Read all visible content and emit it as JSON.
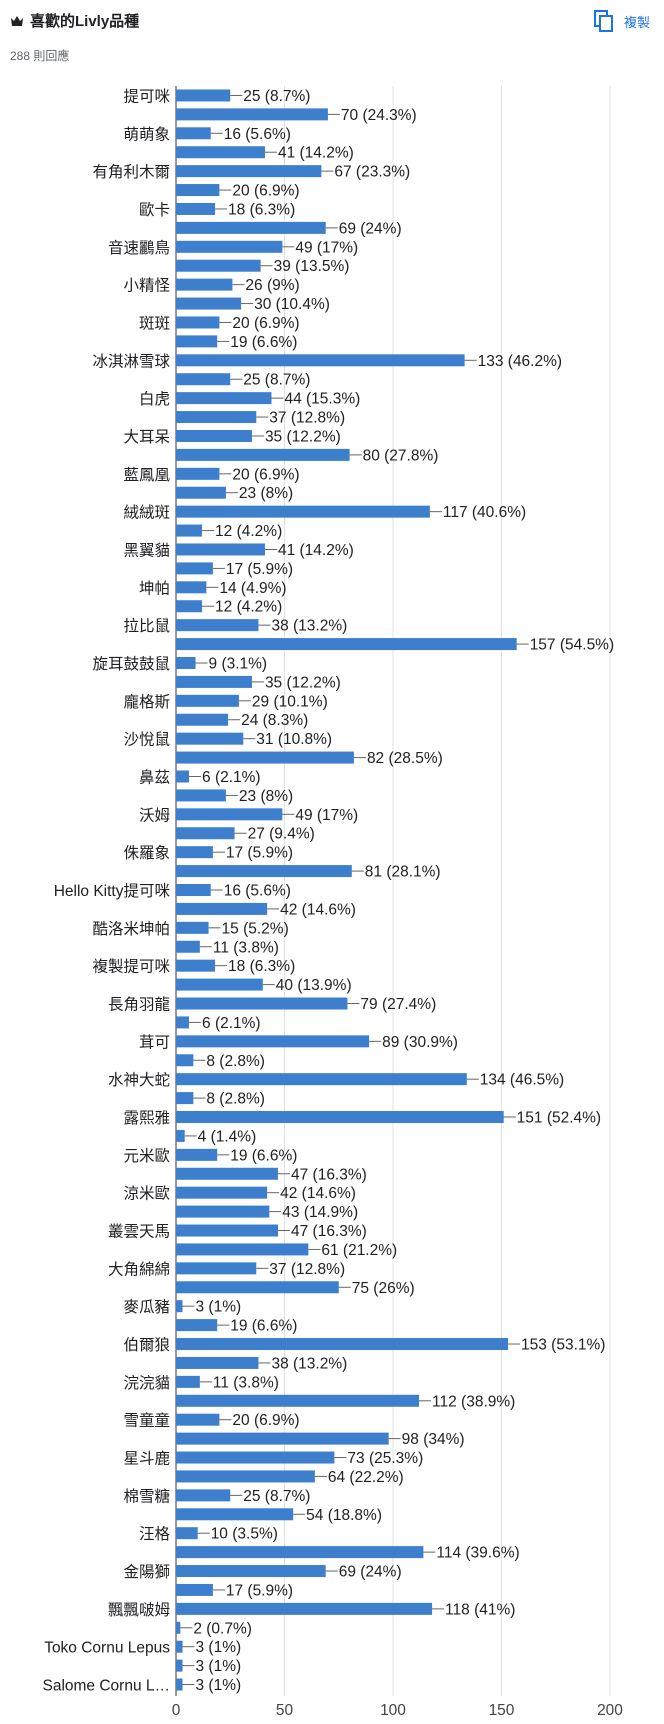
{
  "header": {
    "title": "喜歡的Livly品種",
    "responses": "288 則回應",
    "copy_label": "複製"
  },
  "colors": {
    "bar": "#3d7fcc",
    "grid": "#e0e0e0",
    "accent": "#1a73e8"
  },
  "icons": {
    "title_icon": "crown-icon",
    "copy_icon": "copy-icon"
  },
  "chart_data": {
    "type": "bar",
    "orientation": "horizontal",
    "xlim": [
      0,
      200
    ],
    "xticks": [
      "0",
      "50",
      "100",
      "150",
      "200"
    ],
    "grid": true,
    "rows": [
      {
        "label": "提可咪",
        "value": 25,
        "text": "25 (8.7%)"
      },
      {
        "label": "",
        "value": 70,
        "text": "70 (24.3%)"
      },
      {
        "label": "萌萌象",
        "value": 16,
        "text": "16 (5.6%)"
      },
      {
        "label": "",
        "value": 41,
        "text": "41 (14.2%)"
      },
      {
        "label": "有角利木爾",
        "value": 67,
        "text": "67 (23.3%)"
      },
      {
        "label": "",
        "value": 20,
        "text": "20 (6.9%)"
      },
      {
        "label": "歐卡",
        "value": 18,
        "text": "18 (6.3%)"
      },
      {
        "label": "",
        "value": 69,
        "text": "69 (24%)"
      },
      {
        "label": "音速鸝鳥",
        "value": 49,
        "text": "49 (17%)"
      },
      {
        "label": "",
        "value": 39,
        "text": "39 (13.5%)"
      },
      {
        "label": "小精怪",
        "value": 26,
        "text": "26 (9%)"
      },
      {
        "label": "",
        "value": 30,
        "text": "30 (10.4%)"
      },
      {
        "label": "斑斑",
        "value": 20,
        "text": "20 (6.9%)"
      },
      {
        "label": "",
        "value": 19,
        "text": "19 (6.6%)"
      },
      {
        "label": "冰淇淋雪球",
        "value": 133,
        "text": "133 (46.2%)"
      },
      {
        "label": "",
        "value": 25,
        "text": "25 (8.7%)"
      },
      {
        "label": "白虎",
        "value": 44,
        "text": "44 (15.3%)"
      },
      {
        "label": "",
        "value": 37,
        "text": "37 (12.8%)"
      },
      {
        "label": "大耳呆",
        "value": 35,
        "text": "35 (12.2%)"
      },
      {
        "label": "",
        "value": 80,
        "text": "80 (27.8%)"
      },
      {
        "label": "藍鳳凰",
        "value": 20,
        "text": "20 (6.9%)"
      },
      {
        "label": "",
        "value": 23,
        "text": "23 (8%)"
      },
      {
        "label": "絨絨斑",
        "value": 117,
        "text": "117 (40.6%)"
      },
      {
        "label": "",
        "value": 12,
        "text": "12 (4.2%)"
      },
      {
        "label": "黑翼貓",
        "value": 41,
        "text": "41 (14.2%)"
      },
      {
        "label": "",
        "value": 17,
        "text": "17 (5.9%)"
      },
      {
        "label": "坤帕",
        "value": 14,
        "text": "14 (4.9%)"
      },
      {
        "label": "",
        "value": 12,
        "text": "12 (4.2%)"
      },
      {
        "label": "拉比鼠",
        "value": 38,
        "text": "38 (13.2%)"
      },
      {
        "label": "",
        "value": 157,
        "text": "157 (54.5%)"
      },
      {
        "label": "旋耳鼓鼓鼠",
        "value": 9,
        "text": "9 (3.1%)"
      },
      {
        "label": "",
        "value": 35,
        "text": "35 (12.2%)"
      },
      {
        "label": "龐格斯",
        "value": 29,
        "text": "29 (10.1%)"
      },
      {
        "label": "",
        "value": 24,
        "text": "24 (8.3%)"
      },
      {
        "label": "沙悅鼠",
        "value": 31,
        "text": "31 (10.8%)"
      },
      {
        "label": "",
        "value": 82,
        "text": "82 (28.5%)"
      },
      {
        "label": "鼻茲",
        "value": 6,
        "text": "6 (2.1%)"
      },
      {
        "label": "",
        "value": 23,
        "text": "23 (8%)"
      },
      {
        "label": "沃姆",
        "value": 49,
        "text": "49 (17%)"
      },
      {
        "label": "",
        "value": 27,
        "text": "27 (9.4%)"
      },
      {
        "label": "侏羅象",
        "value": 17,
        "text": "17 (5.9%)"
      },
      {
        "label": "",
        "value": 81,
        "text": "81 (28.1%)"
      },
      {
        "label": "Hello Kitty提可咪",
        "value": 16,
        "text": "16 (5.6%)"
      },
      {
        "label": "",
        "value": 42,
        "text": "42 (14.6%)"
      },
      {
        "label": "酷洛米坤帕",
        "value": 15,
        "text": "15 (5.2%)"
      },
      {
        "label": "",
        "value": 11,
        "text": "11 (3.8%)"
      },
      {
        "label": "複製提可咪",
        "value": 18,
        "text": "18 (6.3%)"
      },
      {
        "label": "",
        "value": 40,
        "text": "40 (13.9%)"
      },
      {
        "label": "長角羽龍",
        "value": 79,
        "text": "79 (27.4%)"
      },
      {
        "label": "",
        "value": 6,
        "text": "6 (2.1%)"
      },
      {
        "label": "茸可",
        "value": 89,
        "text": "89 (30.9%)"
      },
      {
        "label": "",
        "value": 8,
        "text": "8 (2.8%)"
      },
      {
        "label": "水神大蛇",
        "value": 134,
        "text": "134 (46.5%)"
      },
      {
        "label": "",
        "value": 8,
        "text": "8 (2.8%)"
      },
      {
        "label": "露熙雅",
        "value": 151,
        "text": "151 (52.4%)"
      },
      {
        "label": "",
        "value": 4,
        "text": "4 (1.4%)"
      },
      {
        "label": "元米歐",
        "value": 19,
        "text": "19 (6.6%)"
      },
      {
        "label": "",
        "value": 47,
        "text": "47 (16.3%)"
      },
      {
        "label": "涼米歐",
        "value": 42,
        "text": "42 (14.6%)"
      },
      {
        "label": "",
        "value": 43,
        "text": "43 (14.9%)"
      },
      {
        "label": "叢雲天馬",
        "value": 47,
        "text": "47 (16.3%)"
      },
      {
        "label": "",
        "value": 61,
        "text": "61 (21.2%)"
      },
      {
        "label": "大角綿綿",
        "value": 37,
        "text": "37 (12.8%)"
      },
      {
        "label": "",
        "value": 75,
        "text": "75 (26%)"
      },
      {
        "label": "麥瓜豬",
        "value": 3,
        "text": "3 (1%)"
      },
      {
        "label": "",
        "value": 19,
        "text": "19 (6.6%)"
      },
      {
        "label": "伯爾狼",
        "value": 153,
        "text": "153 (53.1%)"
      },
      {
        "label": "",
        "value": 38,
        "text": "38 (13.2%)"
      },
      {
        "label": "浣浣貓",
        "value": 11,
        "text": "11 (3.8%)"
      },
      {
        "label": "",
        "value": 112,
        "text": "112 (38.9%)"
      },
      {
        "label": "雪童童",
        "value": 20,
        "text": "20 (6.9%)"
      },
      {
        "label": "",
        "value": 98,
        "text": "98 (34%)"
      },
      {
        "label": "星斗鹿",
        "value": 73,
        "text": "73 (25.3%)"
      },
      {
        "label": "",
        "value": 64,
        "text": "64 (22.2%)"
      },
      {
        "label": "棉雪糖",
        "value": 25,
        "text": "25 (8.7%)"
      },
      {
        "label": "",
        "value": 54,
        "text": "54 (18.8%)"
      },
      {
        "label": "汪格",
        "value": 10,
        "text": "10 (3.5%)"
      },
      {
        "label": "",
        "value": 114,
        "text": "114 (39.6%)"
      },
      {
        "label": "金陽獅",
        "value": 69,
        "text": "69 (24%)"
      },
      {
        "label": "",
        "value": 17,
        "text": "17 (5.9%)"
      },
      {
        "label": "飄飄啵姆",
        "value": 118,
        "text": "118 (41%)"
      },
      {
        "label": "",
        "value": 2,
        "text": "2 (0.7%)"
      },
      {
        "label": "Toko Cornu Lepus",
        "value": 3,
        "text": "3 (1%)"
      },
      {
        "label": "",
        "value": 3,
        "text": "3 (1%)"
      },
      {
        "label": "Salome Cornu L…",
        "value": 3,
        "text": "3 (1%)"
      }
    ]
  }
}
